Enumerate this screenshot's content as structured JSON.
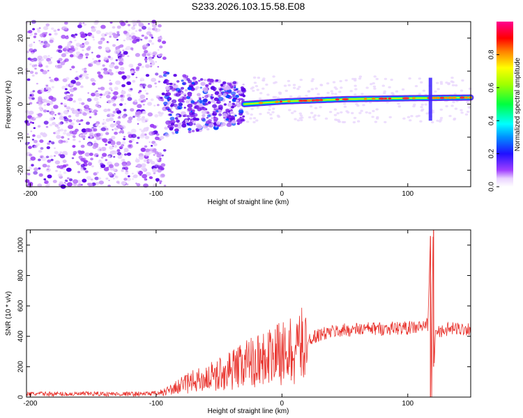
{
  "title": "S233.2026.103.15.58.E08",
  "chart_data": [
    {
      "type": "heatmap",
      "name": "spectrogram",
      "xlabel": "Height of straight line (km)",
      "ylabel": "Frequency (Hz)",
      "xlim": [
        -203,
        150
      ],
      "ylim": [
        -25,
        25
      ],
      "xticks": [
        -200,
        -100,
        0,
        100
      ],
      "yticks": [
        -20,
        -10,
        0,
        10,
        20
      ],
      "colorbar": {
        "label": "Normalized spectral amplitude",
        "range": [
          0,
          1
        ],
        "ticks": [
          "0.0",
          "0.2",
          "0.4",
          "0.6",
          "0.8"
        ]
      },
      "features": {
        "noise_region_km": [
          -203,
          -93
        ],
        "noise_freq_hz": [
          -25,
          25
        ],
        "transition_region_km": [
          -93,
          -30
        ],
        "transition_freq_hz": [
          -8,
          8
        ],
        "signal_band": [
          {
            "km": -30,
            "hz": 0.0
          },
          {
            "km": 0,
            "hz": 0.8
          },
          {
            "km": 50,
            "hz": 1.5
          },
          {
            "km": 100,
            "hz": 1.8
          },
          {
            "km": 150,
            "hz": 2.0
          }
        ],
        "spike_km": 118,
        "spike_freq_hz": [
          -5,
          8
        ]
      }
    },
    {
      "type": "line",
      "name": "snr",
      "xlabel": "Height of straight line (km)",
      "ylabel": "SNR (10 * v/v)",
      "xlim": [
        -203,
        150
      ],
      "ylim": [
        0,
        1100
      ],
      "xticks": [
        -200,
        -100,
        0,
        100
      ],
      "yticks": [
        0,
        200,
        400,
        600,
        800,
        1000
      ],
      "color": "#e8312b",
      "series": [
        {
          "name": "SNR",
          "x": [
            -203,
            -190,
            -170,
            -150,
            -130,
            -110,
            -100,
            -90,
            -80,
            -70,
            -60,
            -50,
            -40,
            -30,
            -20,
            -10,
            0,
            10,
            20,
            30,
            40,
            50,
            60,
            70,
            80,
            90,
            100,
            110,
            116,
            118,
            119,
            120,
            121,
            122,
            125,
            130,
            140,
            150
          ],
          "y": [
            20,
            22,
            20,
            22,
            20,
            22,
            25,
            45,
            80,
            110,
            130,
            160,
            190,
            230,
            260,
            280,
            300,
            330,
            380,
            410,
            430,
            440,
            445,
            450,
            450,
            455,
            455,
            460,
            480,
            1060,
            0,
            1100,
            200,
            440,
            430,
            445,
            450,
            450
          ]
        }
      ]
    }
  ]
}
